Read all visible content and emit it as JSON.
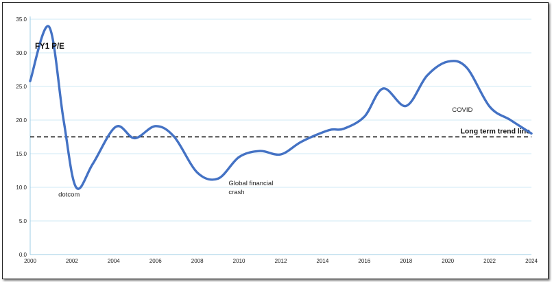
{
  "chart_data": {
    "type": "line",
    "title": "FY1 P/E",
    "xlim": [
      2000,
      2024
    ],
    "ylim": [
      0,
      35
    ],
    "x_ticks": [
      2000,
      2002,
      2004,
      2006,
      2008,
      2010,
      2012,
      2014,
      2016,
      2018,
      2020,
      2022,
      2024
    ],
    "x_tick_labels": [
      "2000",
      "2002",
      "2004",
      "2006",
      "2008",
      "2010",
      "2012",
      "2014",
      "2016",
      "2018",
      "2020",
      "2022",
      "2024"
    ],
    "y_ticks": [
      0,
      5,
      10,
      15,
      20,
      25,
      30,
      35
    ],
    "y_tick_labels": [
      "0.0",
      "5.0",
      "10.0",
      "15.0",
      "20.0",
      "25.0",
      "30.0",
      "35.0"
    ],
    "grid": "horizontal",
    "series": [
      {
        "color": "#4472C4",
        "x": [
          2000,
          2000.9,
          2001.6,
          2002.2,
          2003,
          2004.1,
          2005,
          2006,
          2006.9,
          2008,
          2009,
          2010,
          2011,
          2012,
          2013,
          2014.3,
          2015,
          2016,
          2016.9,
          2018,
          2019,
          2020,
          2020.9,
          2022,
          2023,
          2024
        ],
        "y": [
          25.8,
          33.9,
          20,
          10,
          13.5,
          19,
          17.3,
          19.1,
          17.5,
          12.2,
          11.3,
          14.5,
          15.4,
          14.9,
          16.8,
          18.5,
          18.7,
          20.5,
          24.7,
          22.1,
          26.6,
          28.7,
          27.8,
          22,
          20,
          18
        ]
      }
    ],
    "trend_line": {
      "label": "Long term trend line",
      "value": 17.5,
      "style": "dashed",
      "color": "#000000"
    },
    "annotations": [
      {
        "lines": [
          "dotcom"
        ],
        "x": 2001.35,
        "y": 8.6
      },
      {
        "lines": [
          "Global financial",
          "crash"
        ],
        "x": 2009.5,
        "y": 10.3
      },
      {
        "lines": [
          "COVID"
        ],
        "x": 2020.2,
        "y": 21.2
      }
    ]
  }
}
